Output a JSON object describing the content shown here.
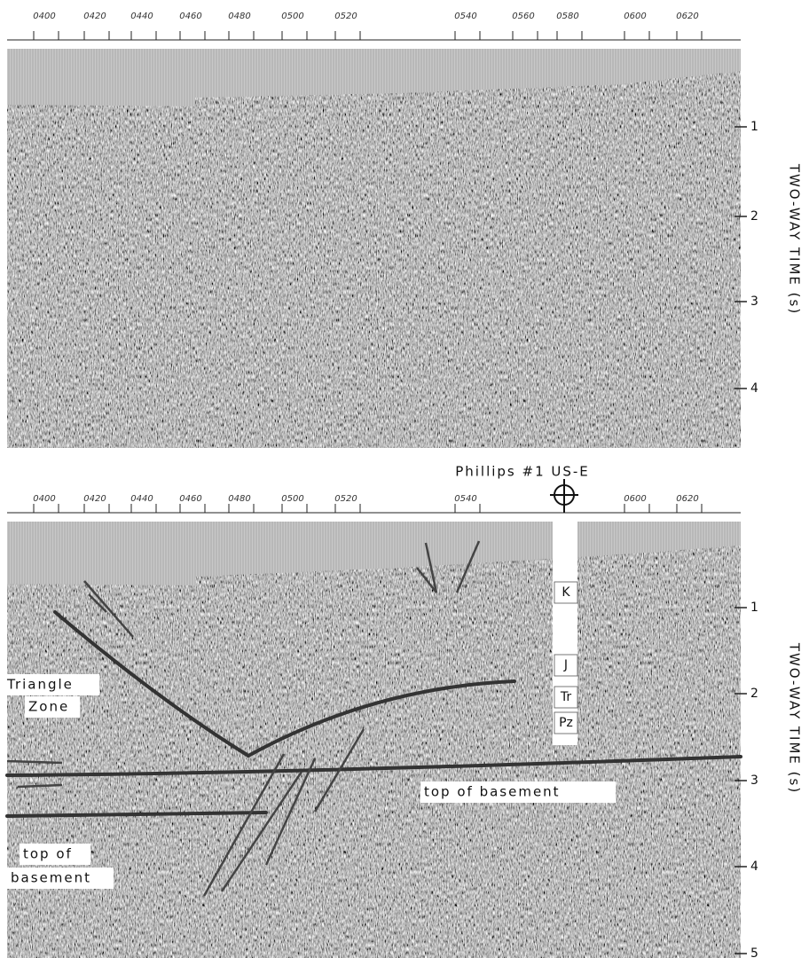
{
  "panels": [
    {
      "x_ticks": [
        "0400",
        "0420",
        "0440",
        "0460",
        "0480",
        "0500",
        "0520",
        "0540",
        "0560",
        "0580",
        "0600",
        "0620"
      ],
      "y_ticks": [
        1,
        2,
        3,
        4
      ],
      "axis_label": "TWO-WAY TIME (s)"
    },
    {
      "x_ticks": [
        "0400",
        "0420",
        "0440",
        "0460",
        "0480",
        "0500",
        "0520",
        "0540",
        "0600",
        "0620"
      ],
      "y_ticks": [
        1,
        2,
        3,
        4,
        5
      ],
      "axis_label": "TWO-WAY TIME (s)",
      "well": {
        "name": "Phillips #1 US-E",
        "units": [
          "K",
          "J",
          "Tr",
          "Pz"
        ]
      },
      "labels": [
        {
          "lines": [
            "Triangle",
            "Zone"
          ]
        },
        {
          "lines": [
            "top of basement"
          ]
        },
        {
          "lines": [
            "top of",
            "basement"
          ]
        }
      ]
    }
  ]
}
